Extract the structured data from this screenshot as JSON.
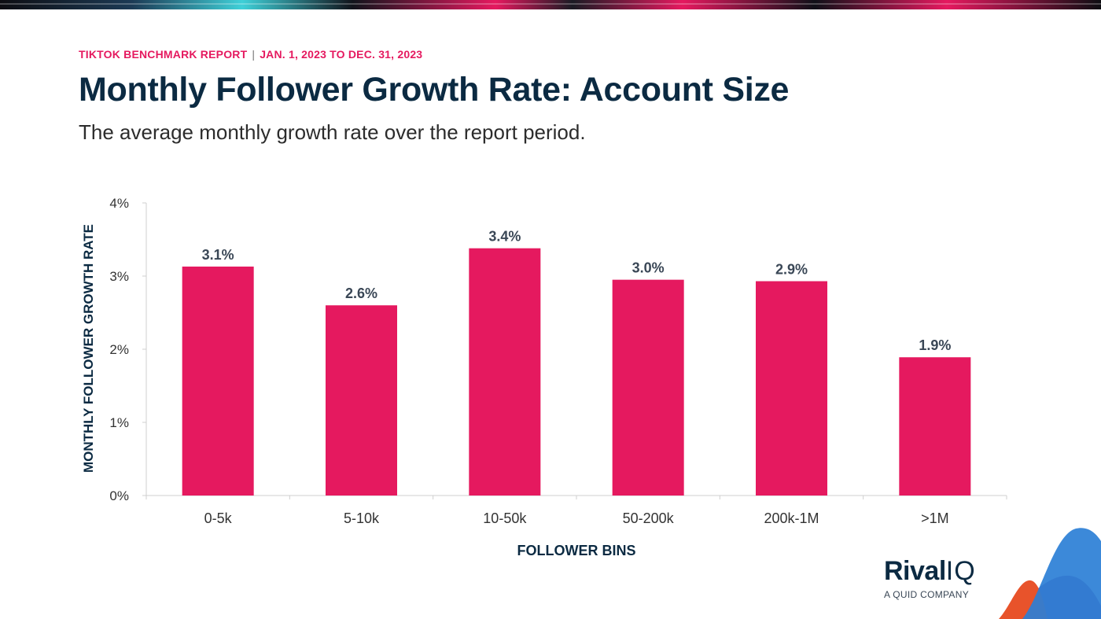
{
  "report": {
    "name": "TIKTOK BENCHMARK REPORT",
    "separator": "|",
    "period": "JAN. 1, 2023 TO DEC. 31, 2023"
  },
  "brand": {
    "wordmark_main": "Rival",
    "wordmark_suffix": "IQ",
    "tagline": "A QUID COMPANY",
    "colors": {
      "accent": "#E5195F",
      "navy": "#0B2A42",
      "bar": "#E5195F",
      "label": "#3A4756",
      "grid": "#CFCFCF",
      "blue": "#2B7FD6",
      "orange": "#E8532B",
      "purple": "#7C3A8E"
    }
  },
  "chart_data": {
    "type": "bar",
    "title": "Monthly Follower Growth Rate: Account Size",
    "subtitle": "The average monthly growth rate over the report period.",
    "xlabel": "FOLLOWER BINS",
    "ylabel": "MONTHLY FOLLOWER GROWTH RATE",
    "categories": [
      "0-5k",
      "5-10k",
      "10-50k",
      "50-200k",
      "200k-1M",
      ">1M"
    ],
    "values": [
      3.13,
      2.6,
      3.38,
      2.95,
      2.93,
      1.89
    ],
    "data_labels": [
      "3.1%",
      "2.6%",
      "3.4%",
      "3.0%",
      "2.9%",
      "1.9%"
    ],
    "ylim": [
      0,
      4
    ],
    "yticks": [
      0,
      1,
      2,
      3,
      4
    ],
    "ytick_labels": [
      "0%",
      "1%",
      "2%",
      "3%",
      "4%"
    ],
    "unit": "%",
    "grid": false,
    "legend": "none"
  }
}
